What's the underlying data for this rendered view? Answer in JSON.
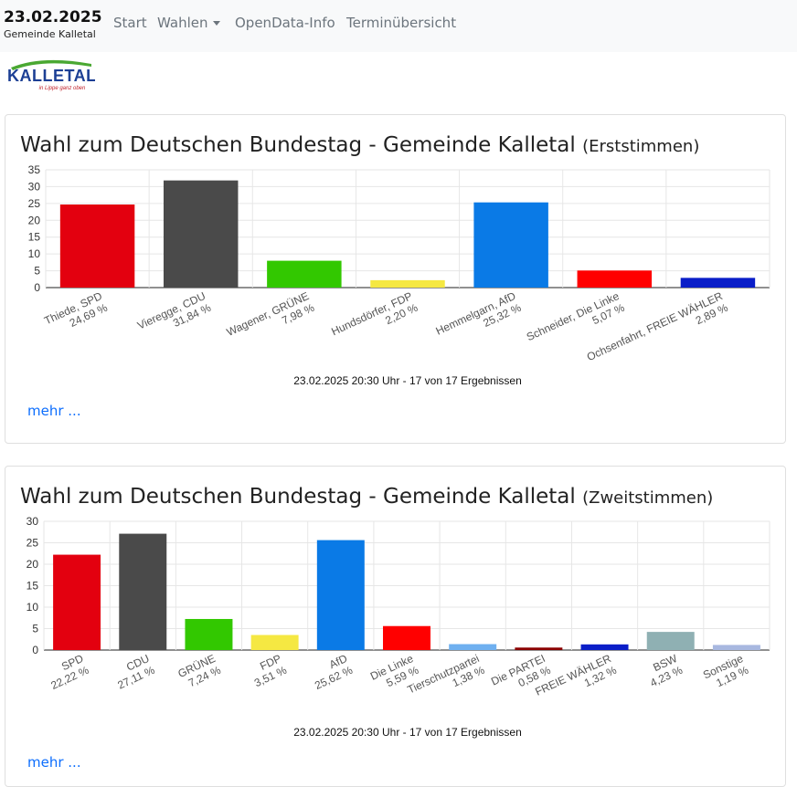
{
  "header": {
    "date": "23.02.2025",
    "municipality": "Gemeinde Kalletal",
    "nav": [
      {
        "label": "Start"
      },
      {
        "label": "Wahlen"
      },
      {
        "label": "OpenData-Info"
      },
      {
        "label": "Terminübersicht"
      }
    ],
    "logo": {
      "text": "KALLETAL",
      "tagline": "in Lippe ganz oben"
    }
  },
  "colors": {
    "SPD": "#e3000f",
    "CDU": "#4a4a4a",
    "GRUENE": "#32c800",
    "FDP": "#f5e842",
    "AfD": "#0a7ae6",
    "LINKE": "#ff0000",
    "FW": "#0a1ec8",
    "TIER": "#6fb0f0",
    "PARTEI": "#8b0000",
    "BSW": "#8fb0b3",
    "SONST": "#a8b8e0",
    "link": "#0d6efd"
  },
  "cards": [
    {
      "title": "Wahl zum Deutschen Bundestag - Gemeinde Kalletal",
      "subtitle": "(Erststimmen)",
      "footer": "23.02.2025 20:30 Uhr - 17 von 17 Ergebnissen",
      "more": "mehr ...",
      "chart_data": {
        "type": "bar",
        "ylim": [
          0,
          35
        ],
        "yticks": [
          "0",
          "5",
          "10",
          "15",
          "20",
          "25",
          "30",
          "35"
        ],
        "categories": [
          "Thiede, SPD",
          "Vieregge, CDU",
          "Wagener, GRÜNE",
          "Hundsdörfer, FDP",
          "Hemmelgarn, AfD",
          "Schneider, Die Linke",
          "Ochsenfahrt, FREIE WÄHLER"
        ],
        "labels": [
          "24,69 %",
          "31,84 %",
          "7,98 %",
          "2,20 %",
          "25,32 %",
          "5,07 %",
          "2,89 %"
        ],
        "values": [
          24.69,
          31.84,
          7.98,
          2.2,
          25.32,
          5.07,
          2.89
        ],
        "colors": [
          "#e3000f",
          "#4a4a4a",
          "#32c800",
          "#f5e842",
          "#0a7ae6",
          "#ff0000",
          "#0a1ec8"
        ],
        "grid": true
      }
    },
    {
      "title": "Wahl zum Deutschen Bundestag - Gemeinde Kalletal",
      "subtitle": "(Zweitstimmen)",
      "footer": "23.02.2025 20:30 Uhr - 17 von 17 Ergebnissen",
      "more": "mehr ...",
      "chart_data": {
        "type": "bar",
        "ylim": [
          0,
          30
        ],
        "yticks": [
          "0",
          "5",
          "10",
          "15",
          "20",
          "25",
          "30"
        ],
        "categories": [
          "SPD",
          "CDU",
          "GRÜNE",
          "FDP",
          "AfD",
          "Die Linke",
          "Tierschutzpartei",
          "Die PARTEI",
          "FREIE WÄHLER",
          "BSW",
          "Sonstige"
        ],
        "labels": [
          "22,22 %",
          "27,11 %",
          "7,24 %",
          "3,51 %",
          "25,62 %",
          "5,59 %",
          "1,38 %",
          "0,58 %",
          "1,32 %",
          "4,23 %",
          "1,19 %"
        ],
        "values": [
          22.22,
          27.11,
          7.24,
          3.51,
          25.62,
          5.59,
          1.38,
          0.58,
          1.32,
          4.23,
          1.19
        ],
        "colors": [
          "#e3000f",
          "#4a4a4a",
          "#32c800",
          "#f5e842",
          "#0a7ae6",
          "#ff0000",
          "#6fb0f0",
          "#8b0000",
          "#0a1ec8",
          "#8fb0b3",
          "#a8b8e0"
        ],
        "grid": true
      }
    }
  ]
}
